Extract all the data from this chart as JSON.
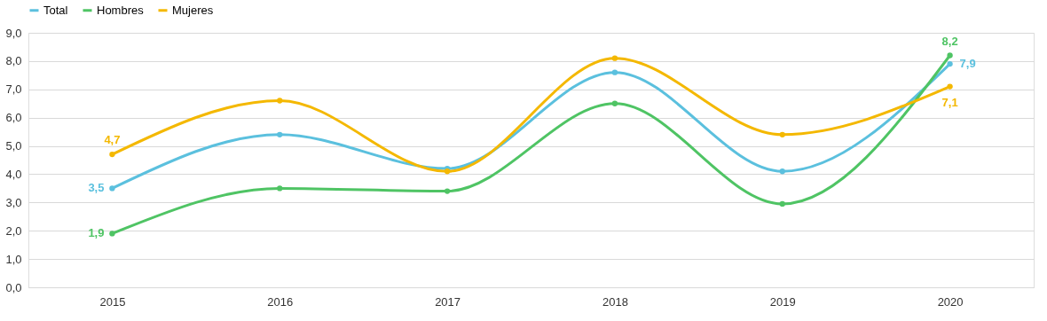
{
  "chart_data": {
    "type": "line",
    "categories": [
      "2015",
      "2016",
      "2017",
      "2018",
      "2019",
      "2020"
    ],
    "series": [
      {
        "name": "Total",
        "color": "#5bc0de",
        "values": [
          3.5,
          5.4,
          4.2,
          7.6,
          4.1,
          7.9
        ],
        "value_labels": [
          "3,5",
          null,
          null,
          null,
          null,
          "7,9"
        ]
      },
      {
        "name": "Hombres",
        "color": "#4fc464",
        "values": [
          1.9,
          3.5,
          3.4,
          6.5,
          2.95,
          8.2
        ],
        "value_labels": [
          "1,9",
          null,
          null,
          null,
          null,
          "8,2"
        ]
      },
      {
        "name": "Mujeres",
        "color": "#f4b800",
        "values": [
          4.7,
          6.6,
          4.1,
          8.1,
          5.4,
          7.1
        ],
        "value_labels": [
          "4,7",
          null,
          null,
          null,
          null,
          "7,1"
        ]
      }
    ],
    "ylim": [
      0,
      9
    ],
    "yticks": [
      {
        "value": 0,
        "label": "0,0"
      },
      {
        "value": 1,
        "label": "1,0"
      },
      {
        "value": 2,
        "label": "2,0"
      },
      {
        "value": 3,
        "label": "3,0"
      },
      {
        "value": 4,
        "label": "4,0"
      },
      {
        "value": 5,
        "label": "5,0"
      },
      {
        "value": 6,
        "label": "6,0"
      },
      {
        "value": 7,
        "label": "7,0"
      },
      {
        "value": 8,
        "label": "8,0"
      },
      {
        "value": 9,
        "label": "9,0"
      }
    ],
    "grid": "y",
    "legend": "top",
    "marker": "circle",
    "line_style": "solid"
  }
}
